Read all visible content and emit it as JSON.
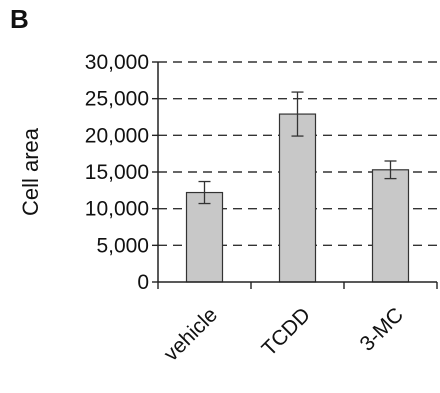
{
  "figure": {
    "panel_label": "B"
  },
  "chart_data": {
    "type": "bar",
    "categories": [
      "vehicle",
      "TCDD",
      "3-MC"
    ],
    "values": [
      12200,
      22900,
      15300
    ],
    "error": [
      1500,
      3000,
      1200
    ],
    "title": "",
    "xlabel": "",
    "ylabel": "Cell area",
    "ylim": [
      0,
      30000
    ],
    "yticks": [
      0,
      5000,
      10000,
      15000,
      20000,
      25000,
      30000
    ],
    "ytick_labels": [
      "0",
      "5,000",
      "10,000",
      "15,000",
      "20,000",
      "25,000",
      "30,000"
    ],
    "grid": "horizontal-dashed",
    "legend": "none",
    "colors": {
      "bar_fill": "#c8c8c8",
      "bar_stroke": "#333333",
      "axis": "#222222",
      "grid": "#333333",
      "error": "#333333"
    }
  }
}
